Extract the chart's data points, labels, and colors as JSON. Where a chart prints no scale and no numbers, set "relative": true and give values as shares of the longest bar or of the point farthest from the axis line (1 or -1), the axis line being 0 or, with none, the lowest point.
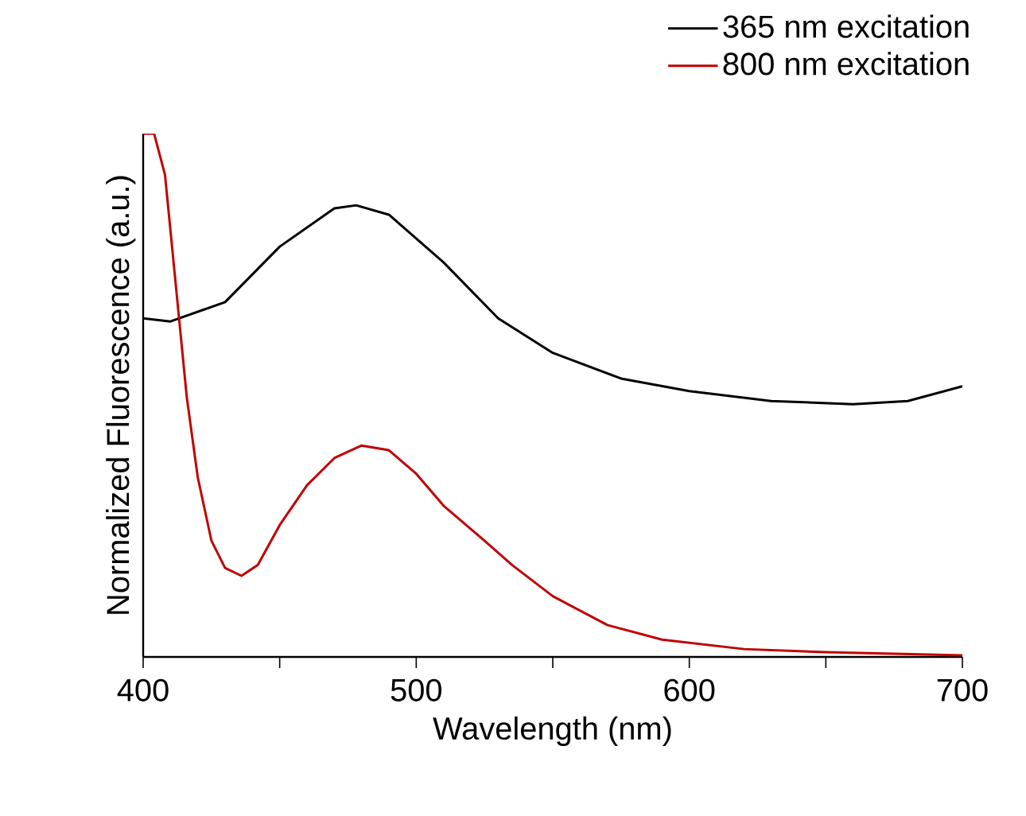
{
  "chart_data": {
    "type": "line",
    "relative": true,
    "xlabel": "Wavelength (nm)",
    "ylabel": "Normalized Fluorescence (a.u.)",
    "xlim": [
      400,
      700
    ],
    "xticks": [
      400,
      {
        "value": 450,
        "label": null
      },
      500,
      {
        "value": 550,
        "label": null
      },
      600,
      {
        "value": 650,
        "label": null
      },
      700
    ],
    "legend": "top right",
    "grid": false,
    "marker": "none",
    "line_style": "solid",
    "series": [
      {
        "name": "365 nm excitation",
        "color": "#000000",
        "x": [
          400,
          410,
          430,
          450,
          470,
          478,
          490,
          510,
          530,
          550,
          575,
          600,
          630,
          660,
          680,
          700
        ],
        "values": [
          0.647,
          0.641,
          0.678,
          0.784,
          0.857,
          0.863,
          0.845,
          0.754,
          0.647,
          0.581,
          0.532,
          0.508,
          0.489,
          0.483,
          0.489,
          0.517
        ]
      },
      {
        "name": "800 nm excitation",
        "color": "#c00000",
        "x": [
          400,
          404,
          408,
          412,
          416,
          420,
          425,
          430,
          436,
          442,
          450,
          460,
          470,
          480,
          490,
          500,
          510,
          525,
          535,
          550,
          570,
          590,
          620,
          650,
          700
        ],
        "values": [
          1.0,
          1.0,
          0.921,
          0.708,
          0.495,
          0.343,
          0.222,
          0.17,
          0.155,
          0.176,
          0.252,
          0.328,
          0.38,
          0.404,
          0.395,
          0.35,
          0.289,
          0.222,
          0.176,
          0.116,
          0.061,
          0.033,
          0.015,
          0.009,
          0.003
        ]
      }
    ]
  }
}
